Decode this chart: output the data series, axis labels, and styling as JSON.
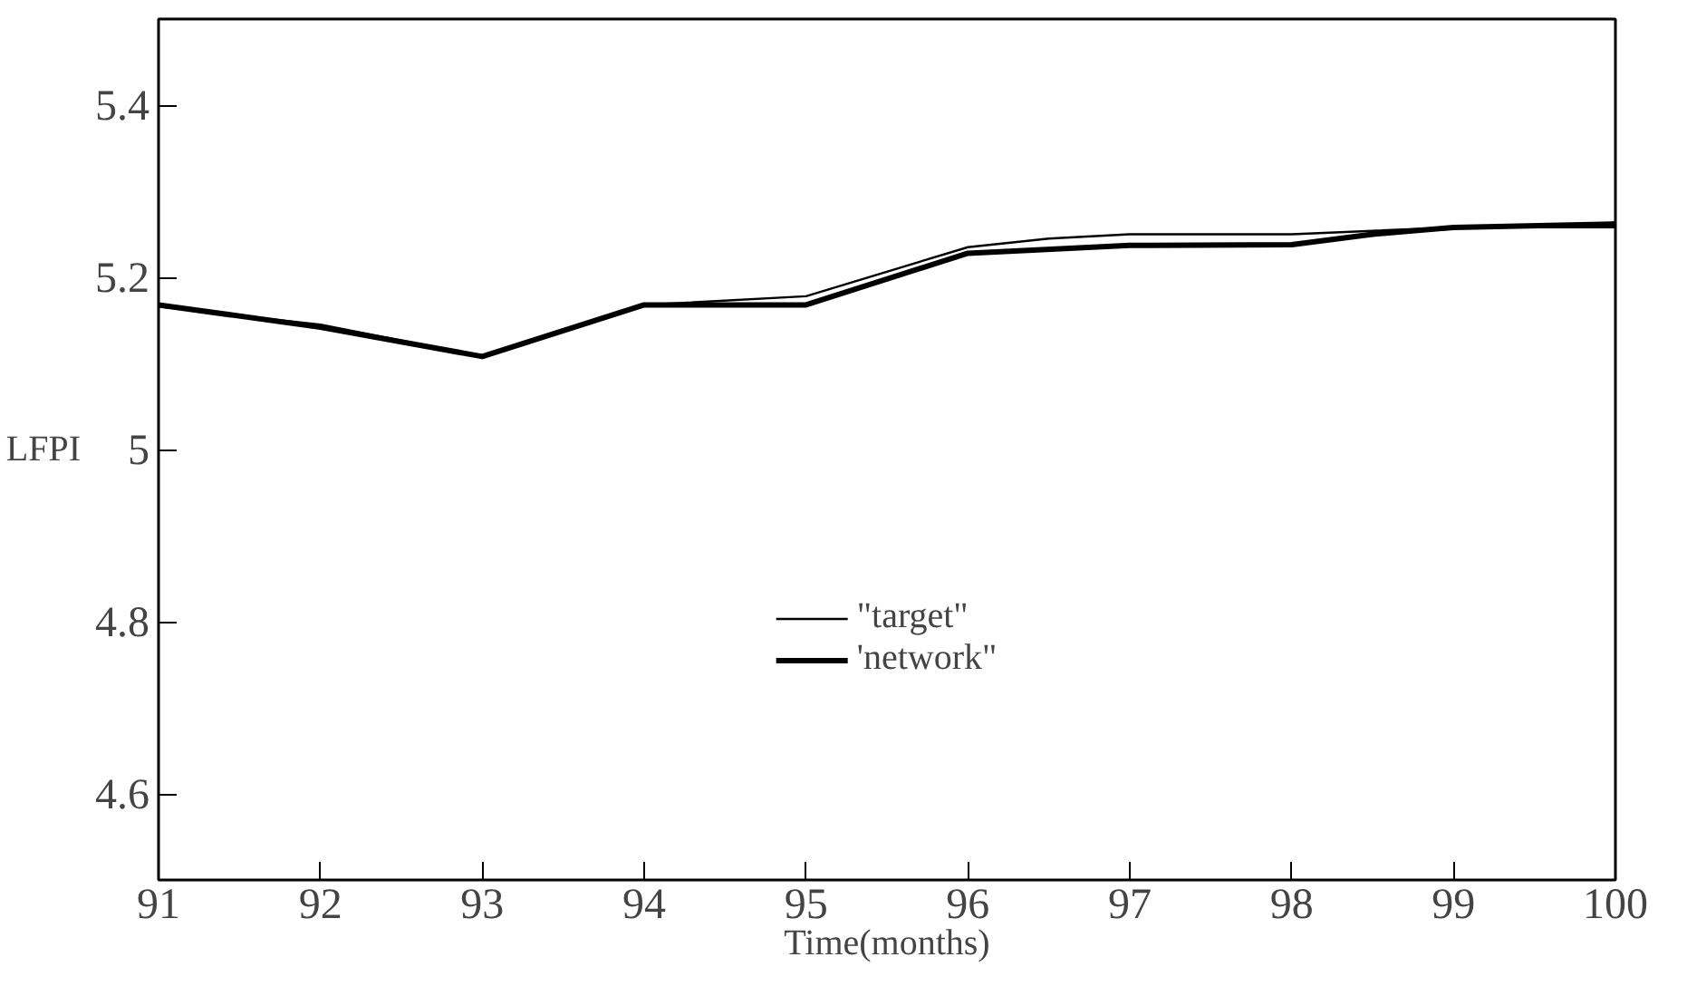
{
  "chart_data": {
    "type": "line",
    "xlabel": "Time(months)",
    "ylabel": "LFPI",
    "xlim": [
      91,
      100
    ],
    "xticks": [
      91,
      92,
      93,
      94,
      95,
      96,
      97,
      98,
      99,
      100
    ],
    "ylim": [
      4.5,
      5.5
    ],
    "yticks": [
      4.6,
      4.8,
      5,
      5.2,
      5.4
    ],
    "grid": false,
    "legend": "bottom",
    "marker": "none",
    "line_style": "solid",
    "series": [
      {
        "name": "\"target\"",
        "color": "#000000",
        "x": [
          91,
          92,
          93,
          94,
          95,
          96,
          96.5,
          97,
          98,
          99,
          100
        ],
        "values": [
          5.166,
          5.145,
          5.108,
          5.168,
          5.178,
          5.235,
          5.245,
          5.25,
          5.25,
          5.258,
          5.258
        ]
      },
      {
        "name": "'network\"",
        "color": "#000000",
        "x": [
          91,
          92,
          93,
          94,
          95,
          96,
          97,
          98,
          98.5,
          99,
          100
        ],
        "values": [
          5.168,
          5.142,
          5.108,
          5.168,
          5.168,
          5.228,
          5.237,
          5.238,
          5.25,
          5.258,
          5.262
        ]
      }
    ]
  }
}
